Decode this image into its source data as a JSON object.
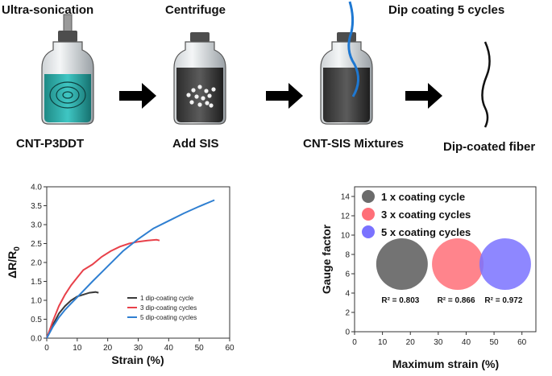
{
  "steps": {
    "s1_top": "Ultra-sonication",
    "s1_bottom": "CNT-P3DDT",
    "s2_top": "Centrifuge",
    "s2_bottom": "Add SIS",
    "s3_top": "Dip coating 5 cycles",
    "s3_bottom": "CNT-SIS Mixtures",
    "s4_bottom": "Dip-coated fiber"
  },
  "colors": {
    "cycle1": "#3a3a3a",
    "cycle3": "#e8414a",
    "cycle5": "#2f7fd1",
    "bubble1": "#6b6b6b",
    "bubble3": "#ff6f78",
    "bubble5": "#7a72ff"
  },
  "chart_data": [
    {
      "type": "line",
      "xlabel": "Strain (%)",
      "ylabel": "ΔR/R0",
      "xlim": [
        0,
        60
      ],
      "ylim": [
        0,
        4.0
      ],
      "xticks": [
        "0",
        "10",
        "20",
        "30",
        "40",
        "50",
        "60"
      ],
      "yticks": [
        "0.0",
        "0.5",
        "1.0",
        "1.5",
        "2.0",
        "2.5",
        "3.0",
        "3.5",
        "4.0"
      ],
      "legend_position": "bottom-right",
      "series": [
        {
          "name": "1 dip-coating cycle",
          "x": [
            0,
            2,
            4,
            6,
            8,
            10,
            12,
            14,
            16,
            17
          ],
          "y": [
            0,
            0.35,
            0.65,
            0.85,
            1.0,
            1.1,
            1.15,
            1.2,
            1.22,
            1.2
          ]
        },
        {
          "name": "3 dip-coating cycles",
          "x": [
            0,
            2,
            4,
            6,
            8,
            10,
            12,
            15,
            18,
            21,
            24,
            27,
            30,
            33,
            36,
            37
          ],
          "y": [
            0,
            0.45,
            0.85,
            1.15,
            1.4,
            1.6,
            1.8,
            1.95,
            2.15,
            2.3,
            2.42,
            2.5,
            2.55,
            2.58,
            2.6,
            2.58
          ]
        },
        {
          "name": "5 dip-coating cycles",
          "x": [
            0,
            2,
            4,
            6,
            8,
            10,
            15,
            20,
            25,
            30,
            35,
            40,
            45,
            50,
            55
          ],
          "y": [
            0,
            0.3,
            0.55,
            0.75,
            0.92,
            1.08,
            1.5,
            1.9,
            2.3,
            2.62,
            2.9,
            3.1,
            3.3,
            3.48,
            3.65
          ]
        }
      ]
    },
    {
      "type": "scatter",
      "xlabel": "Maximum strain (%)",
      "ylabel": "Gauge factor",
      "xlim": [
        0,
        65
      ],
      "ylim": [
        0,
        15
      ],
      "xticks": [
        "0",
        "10",
        "20",
        "30",
        "40",
        "50",
        "60"
      ],
      "yticks": [
        "0",
        "2",
        "4",
        "6",
        "8",
        "10",
        "12",
        "14"
      ],
      "legend_position": "top-left",
      "series": [
        {
          "name": "1 x coating cycle",
          "x": 17,
          "y": 7.0,
          "r2": "R² = 0.803"
        },
        {
          "name": "3 x coating cycles",
          "x": 37,
          "y": 7.0,
          "r2": "R² = 0.866"
        },
        {
          "name": "5 x coating cycles",
          "x": 54,
          "y": 7.0,
          "r2": "R² = 0.972"
        }
      ]
    }
  ]
}
